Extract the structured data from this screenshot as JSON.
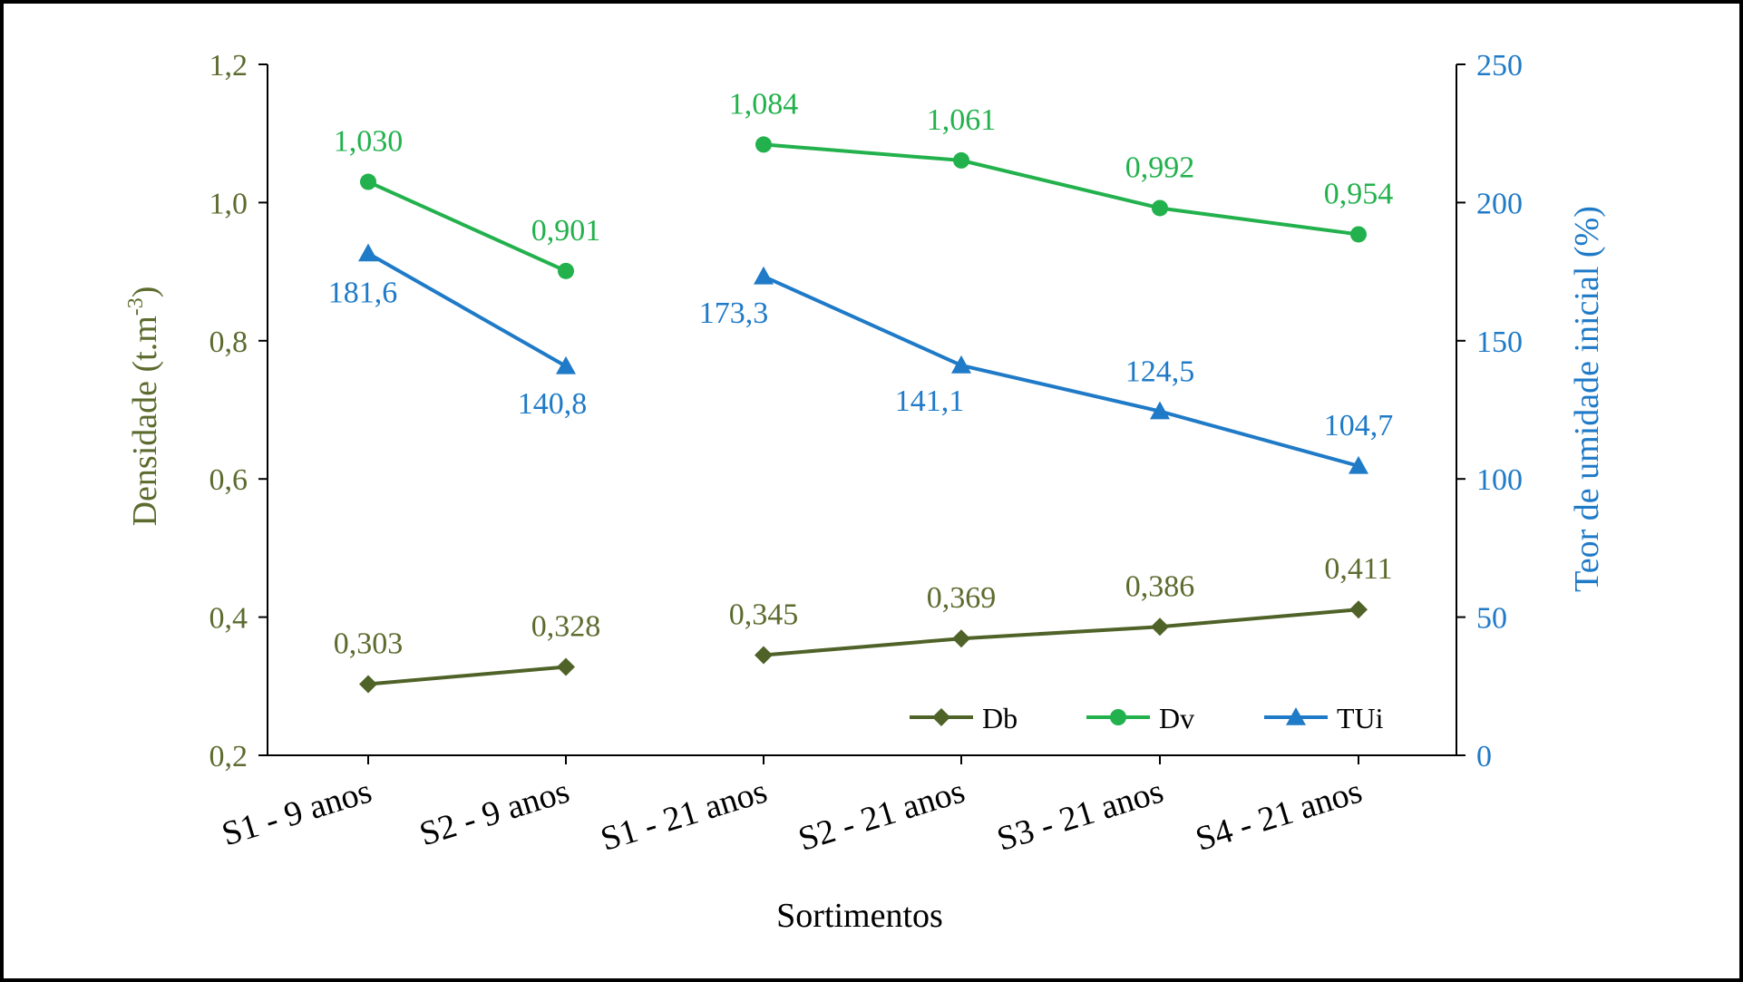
{
  "chart_data": {
    "type": "line",
    "xlabel": "Sortimentos",
    "categories": [
      "S1 - 9 anos",
      "S2 - 9 anos",
      "S1 - 21 anos",
      "S2 - 21 anos",
      "S3 - 21 anos",
      "S4 - 21 anos"
    ],
    "y_left": {
      "label_main": "Densidade (t.m",
      "label_sup": "-3",
      "label_close": ")",
      "ylim": [
        0.2,
        1.2
      ],
      "ticks": [
        0.2,
        0.4,
        0.6,
        0.8,
        1.0,
        1.2
      ],
      "tick_labels": [
        "0,2",
        "0,4",
        "0,6",
        "0,8",
        "1,0",
        "1,2"
      ],
      "color": "#5c6b2e"
    },
    "y_right": {
      "label": "Teor de umidade inicial  (%)",
      "ylim": [
        0,
        250
      ],
      "ticks": [
        0,
        50,
        100,
        150,
        200,
        250
      ],
      "tick_labels": [
        "0",
        "50",
        "100",
        "150",
        "200",
        "250"
      ],
      "color": "#1f7ac7"
    },
    "series": [
      {
        "name": "Db",
        "axis": "left",
        "marker": "diamond",
        "color": "#4f6228",
        "label_color": "#5c6b2e",
        "segments": [
          [
            0,
            1
          ],
          [
            2,
            3,
            4,
            5
          ]
        ],
        "values": [
          0.303,
          0.328,
          0.345,
          0.369,
          0.386,
          0.411
        ],
        "labels": [
          "0,303",
          "0,328",
          "0,345",
          "0,369",
          "0,386",
          "0,411"
        ]
      },
      {
        "name": "Dv",
        "axis": "left",
        "marker": "circle",
        "color": "#22b14c",
        "label_color": "#22b14c",
        "segments": [
          [
            0,
            1
          ],
          [
            2,
            3,
            4,
            5
          ]
        ],
        "values": [
          1.03,
          0.901,
          1.084,
          1.061,
          0.992,
          0.954
        ],
        "labels": [
          "1,030",
          "0,901",
          "1,084",
          "1,061",
          "0,992",
          "0,954"
        ]
      },
      {
        "name": "TUi",
        "axis": "right",
        "marker": "triangle",
        "color": "#1f7ac7",
        "label_color": "#1f7ac7",
        "segments": [
          [
            0,
            1
          ],
          [
            2,
            3,
            4,
            5
          ]
        ],
        "values": [
          181.6,
          140.8,
          173.3,
          141.1,
          124.5,
          104.7
        ],
        "labels": [
          "181,6",
          "140,8",
          "173,3",
          "141,1",
          "124,5",
          "104,7"
        ]
      }
    ],
    "legend": {
      "position": "bottom-right",
      "items": [
        "Db",
        "Dv",
        "TUi"
      ]
    }
  }
}
